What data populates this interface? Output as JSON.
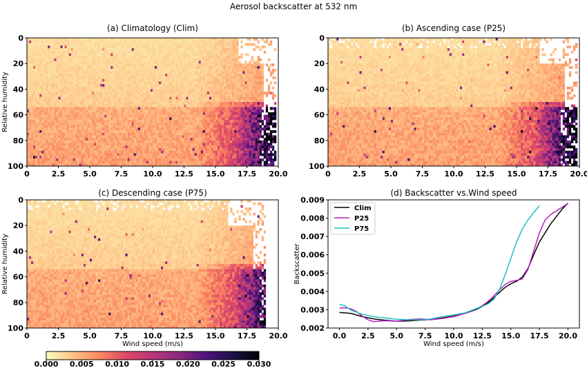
{
  "figure": {
    "suptitle": "Aerosol backscatter at 532 nm"
  },
  "colors": {
    "clim": "#000000",
    "p25": "#b21fbf",
    "p75": "#1fbfbf",
    "colormap": [
      "#fcfdbf",
      "#fec287",
      "#fb8861",
      "#de4968",
      "#b73779",
      "#8c2981",
      "#51127c",
      "#1d1147",
      "#000004"
    ]
  },
  "chart_data": [
    {
      "type": "heatmap",
      "title": "(a) Climatology (Clim)",
      "xlabel": "",
      "ylabel": "Relative humidity",
      "xlim": [
        0,
        20
      ],
      "ylim": [
        100,
        0
      ],
      "xticks": [
        "0",
        "2.5",
        "5.0",
        "7.5",
        "10.0",
        "12.5",
        "15.0",
        "17.5",
        "20.0"
      ],
      "yticks": [
        "0",
        "20",
        "40",
        "60",
        "80",
        "100"
      ],
      "x_data_extent": 19.8,
      "upper_rh_coverage": 1.0
    },
    {
      "type": "heatmap",
      "title": "(b) Ascending case (P25)",
      "xlabel": "",
      "ylabel": "",
      "xlim": [
        0,
        20
      ],
      "ylim": [
        100,
        0
      ],
      "xticks": [
        "0",
        "2.5",
        "5.0",
        "7.5",
        "10.0",
        "12.5",
        "15.0",
        "17.5",
        "20.0"
      ],
      "yticks": [
        "0",
        "20",
        "40",
        "60",
        "80",
        "100"
      ],
      "x_data_extent": 19.9,
      "upper_rh_coverage": 0.85
    },
    {
      "type": "heatmap",
      "title": "(c) Descending case (P75)",
      "xlabel": "Wind speed (m/s)",
      "ylabel": "Relative humidity",
      "xlim": [
        0,
        20
      ],
      "ylim": [
        100,
        0
      ],
      "xticks": [
        "0",
        "2.5",
        "5.0",
        "7.5",
        "10.0",
        "12.5",
        "15.0",
        "17.5",
        "20.0"
      ],
      "yticks": [
        "0",
        "20",
        "40",
        "60",
        "80",
        "100"
      ],
      "x_data_extent": 19.0,
      "upper_rh_coverage": 0.8
    },
    {
      "type": "line",
      "title": "(d) Backscatter vs.Wind speed",
      "xlabel": "Wind speed (m/s)",
      "ylabel": "Backscatter",
      "xlim": [
        -1,
        21
      ],
      "ylim": [
        0.002,
        0.009
      ],
      "xticks": [
        "0.0",
        "2.5",
        "5.0",
        "7.5",
        "10.0",
        "12.5",
        "15.0",
        "17.5",
        "20.0"
      ],
      "yticks": [
        "0.002",
        "0.003",
        "0.004",
        "0.005",
        "0.006",
        "0.007",
        "0.008",
        "0.009"
      ],
      "legend_position": "upper-left",
      "series": [
        {
          "name": "Clim",
          "x": [
            0,
            1,
            2,
            3,
            4,
            5,
            6,
            7,
            8,
            9,
            10,
            11,
            12,
            12.5,
            13,
            13.5,
            14,
            14.5,
            15,
            15.5,
            16,
            16.5,
            17,
            17.5,
            18,
            18.5,
            19,
            19.5,
            20
          ],
          "values": [
            0.00285,
            0.0028,
            0.00262,
            0.0025,
            0.00243,
            0.00237,
            0.00239,
            0.00243,
            0.00247,
            0.00255,
            0.00265,
            0.0028,
            0.00302,
            0.00318,
            0.00338,
            0.00365,
            0.00395,
            0.00422,
            0.00442,
            0.00455,
            0.00478,
            0.00525,
            0.006,
            0.0067,
            0.0072,
            0.0077,
            0.0081,
            0.0085,
            0.00882
          ]
        },
        {
          "name": "P25",
          "x": [
            0,
            0.5,
            1,
            1.5,
            2,
            2.5,
            3,
            3.5,
            4,
            5,
            6,
            7,
            8,
            9,
            10,
            11,
            12,
            12.5,
            13,
            13.5,
            14,
            14.5,
            15,
            15.5,
            16,
            16.5,
            17,
            17.5,
            18,
            18.5,
            19,
            19.5,
            20
          ],
          "values": [
            0.0031,
            0.0031,
            0.00305,
            0.0029,
            0.00265,
            0.00245,
            0.00235,
            0.00238,
            0.0024,
            0.00237,
            0.00246,
            0.0025,
            0.00245,
            0.00252,
            0.00262,
            0.0028,
            0.00305,
            0.00322,
            0.00345,
            0.00375,
            0.00408,
            0.00438,
            0.00455,
            0.0046,
            0.00468,
            0.0052,
            0.0062,
            0.0072,
            0.0079,
            0.0082,
            0.0084,
            0.0086,
            0.0088
          ]
        },
        {
          "name": "P75",
          "x": [
            0,
            0.5,
            1,
            2,
            3,
            4,
            5,
            6,
            7,
            8,
            9,
            10,
            11,
            12,
            12.5,
            13,
            13.5,
            14,
            14.5,
            15,
            15.5,
            16,
            16.5,
            17,
            17.5
          ],
          "values": [
            0.0033,
            0.0032,
            0.00298,
            0.00275,
            0.00262,
            0.00255,
            0.00248,
            0.00245,
            0.00244,
            0.0025,
            0.00262,
            0.00272,
            0.00283,
            0.00307,
            0.00318,
            0.00332,
            0.00355,
            0.0041,
            0.0049,
            0.0058,
            0.0067,
            0.0074,
            0.0079,
            0.0083,
            0.00868
          ]
        }
      ]
    },
    {
      "type": "colorbar",
      "range": [
        0.0,
        0.03
      ],
      "ticks": [
        "0.000",
        "0.005",
        "0.010",
        "0.015",
        "0.020",
        "0.025",
        "0.030"
      ]
    }
  ]
}
